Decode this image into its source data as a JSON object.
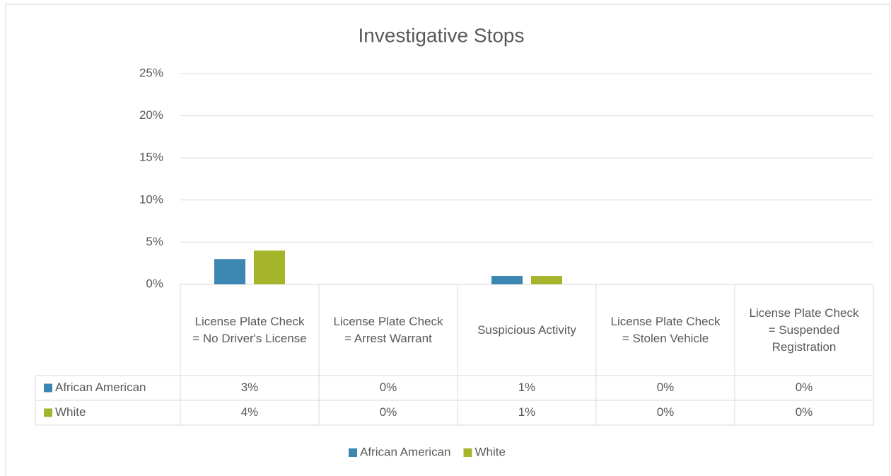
{
  "chart_data": {
    "type": "bar",
    "title": "Investigative Stops",
    "categories": [
      "License Plate Check = No Driver's License",
      "License Plate Check = Arrest Warrant",
      "Suspicious Activity",
      "License Plate Check = Stolen Vehicle",
      "License Plate Check = Suspended Registration"
    ],
    "series": [
      {
        "name": "African American",
        "color": "#3b87b1",
        "values": [
          3,
          0,
          1,
          0,
          0
        ],
        "value_labels": [
          "3%",
          "0%",
          "1%",
          "0%",
          "0%"
        ]
      },
      {
        "name": "White",
        "color": "#a4b52c",
        "values": [
          4,
          0,
          1,
          0,
          0
        ],
        "value_labels": [
          "4%",
          "0%",
          "1%",
          "0%",
          "0%"
        ]
      }
    ],
    "ylim": [
      0,
      25
    ],
    "yticks": [
      {
        "value": 0,
        "label": "0%"
      },
      {
        "value": 5,
        "label": "5%"
      },
      {
        "value": 10,
        "label": "10%"
      },
      {
        "value": 15,
        "label": "15%"
      },
      {
        "value": 20,
        "label": "20%"
      },
      {
        "value": 25,
        "label": "25%"
      }
    ],
    "grid": true,
    "legend": "bottom"
  }
}
